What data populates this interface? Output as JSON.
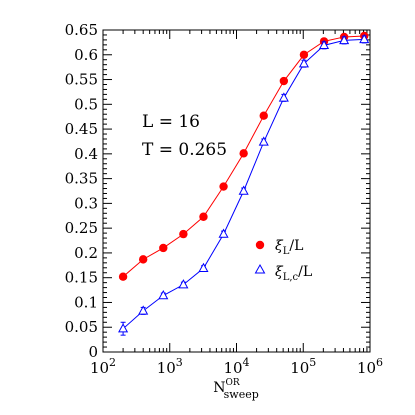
{
  "chart_data": {
    "type": "scatter",
    "title": "",
    "xlabel_main": "N",
    "xlabel_sup": "OR",
    "xlabel_sub": "sweep",
    "ylabel": "",
    "x_scale": "log",
    "xlim": [
      100,
      1000000
    ],
    "ylim": [
      0,
      0.65
    ],
    "x_ticks": [
      {
        "value": 100,
        "base": "10",
        "exp": "2"
      },
      {
        "value": 1000,
        "base": "10",
        "exp": "3"
      },
      {
        "value": 10000,
        "base": "10",
        "exp": "4"
      },
      {
        "value": 100000,
        "base": "10",
        "exp": "5"
      },
      {
        "value": 1000000,
        "base": "10",
        "exp": "6"
      }
    ],
    "y_ticks": [
      "0",
      "0.05",
      "0.1",
      "0.15",
      "0.2",
      "0.25",
      "0.3",
      "0.35",
      "0.4",
      "0.45",
      "0.5",
      "0.55",
      "0.6",
      "0.65"
    ],
    "annotations": [
      "L  =  16",
      "T  =  0.265"
    ],
    "legend_position": "lower-right",
    "x": [
      200,
      400,
      800,
      1600,
      3200,
      6400,
      12800,
      25600,
      51200,
      102400,
      204800,
      409600,
      819200
    ],
    "series": [
      {
        "legend_main": "ξ",
        "legend_sub": "L",
        "legend_suffix": "/L",
        "marker": "filled-circle",
        "color": "#ff0000",
        "line_color": "#ff0000",
        "values": [
          0.152,
          0.187,
          0.21,
          0.238,
          0.273,
          0.334,
          0.401,
          0.477,
          0.547,
          0.6,
          0.627,
          0.636,
          0.638
        ],
        "errors": [
          0.003,
          0.003,
          0.003,
          0.003,
          0.003,
          0.004,
          0.004,
          0.004,
          0.004,
          0.004,
          0.004,
          0.004,
          0.004
        ]
      },
      {
        "legend_main": "ξ",
        "legend_sub": "L,c",
        "legend_suffix": "/L",
        "marker": "open-triangle",
        "color": "#0000ff",
        "line_color": "#0000ff",
        "values": [
          0.047,
          0.083,
          0.114,
          0.136,
          0.169,
          0.238,
          0.325,
          0.424,
          0.513,
          0.582,
          0.619,
          0.629,
          0.631
        ],
        "errors": [
          0.013,
          0.007,
          0.005,
          0.005,
          0.005,
          0.006,
          0.006,
          0.006,
          0.007,
          0.007,
          0.007,
          0.007,
          0.007
        ]
      }
    ]
  }
}
